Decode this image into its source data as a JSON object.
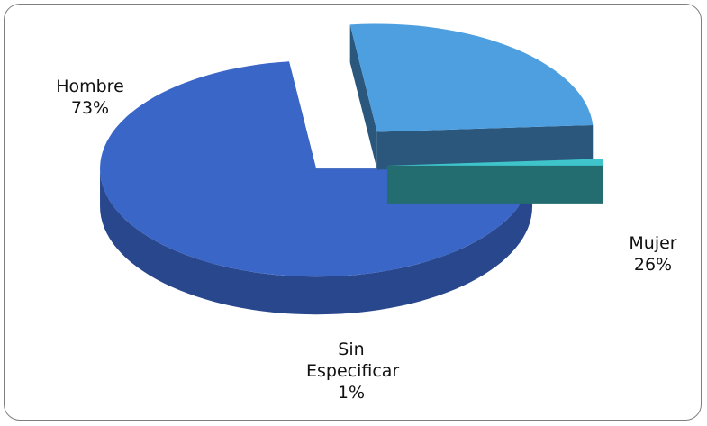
{
  "chart_data": {
    "type": "pie",
    "categories": [
      "Hombre",
      "Mujer",
      "Sin Especificar"
    ],
    "values": [
      73,
      26,
      1
    ],
    "value_labels": [
      "73%",
      "26%",
      "1%"
    ],
    "colors": [
      "#3a66c8",
      "#4d9fe0",
      "#3fc4cc"
    ]
  }
}
